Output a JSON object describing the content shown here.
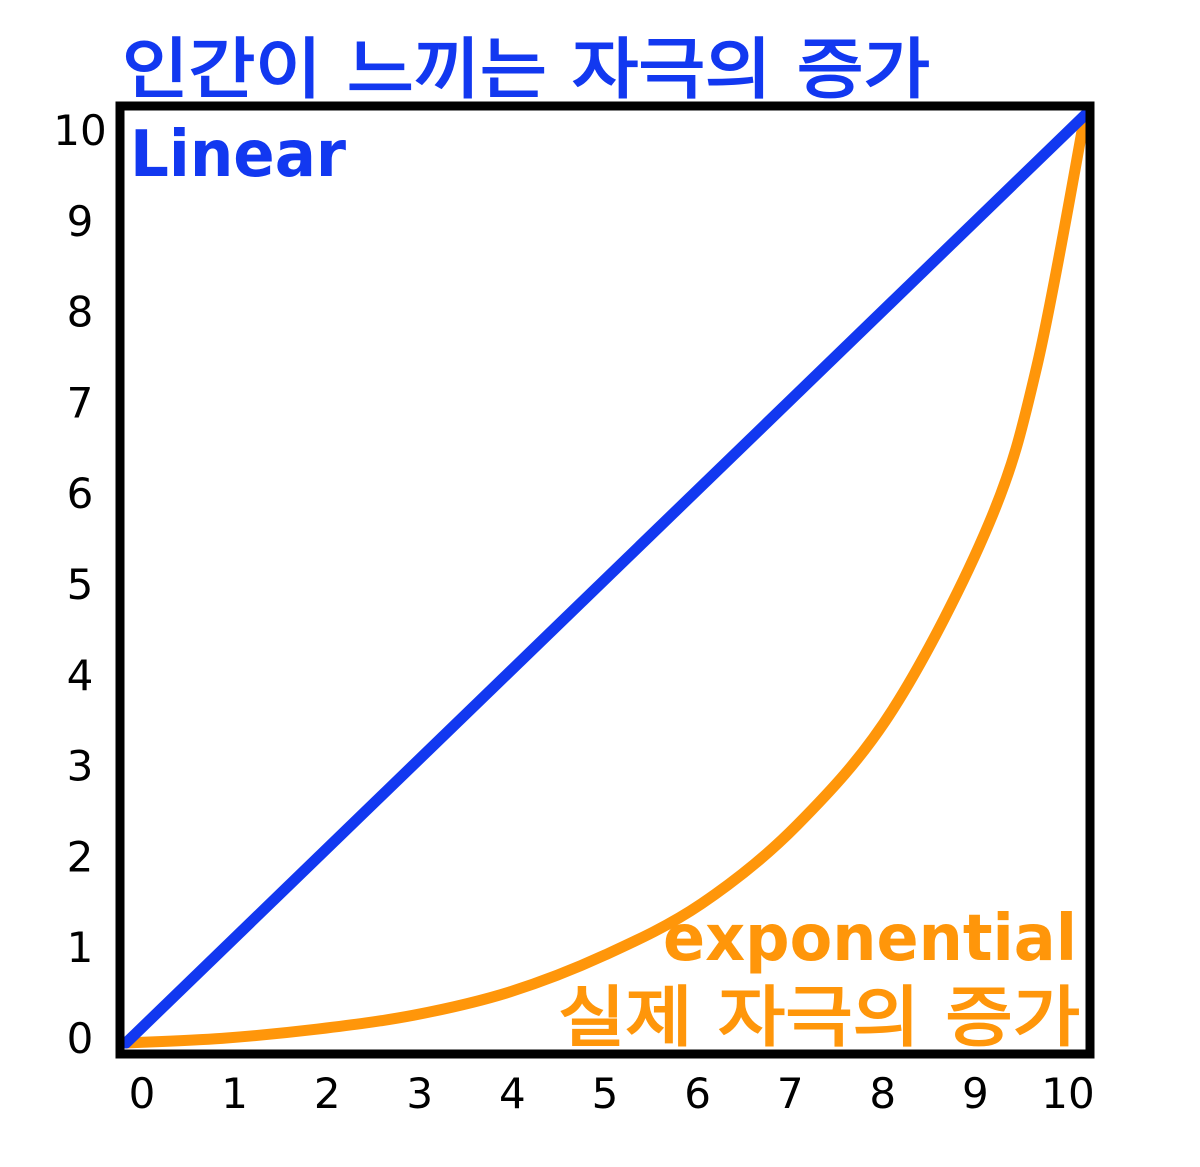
{
  "chart_data": {
    "type": "line",
    "title": "",
    "xlabel": "",
    "ylabel": "",
    "xlim": [
      0,
      10
    ],
    "ylim": [
      0,
      10
    ],
    "x_ticks": [
      "0",
      "1",
      "2",
      "3",
      "4",
      "5",
      "6",
      "7",
      "8",
      "9",
      "10"
    ],
    "y_ticks": [
      "0",
      "1",
      "2",
      "3",
      "4",
      "5",
      "6",
      "7",
      "8",
      "9",
      "10"
    ],
    "grid": false,
    "series": [
      {
        "key": "linear",
        "label_line1": "인간이 느끼는 자극의 증가",
        "label_line2": "Linear",
        "color": "#1238f0",
        "x": [
          0,
          10
        ],
        "y": [
          0,
          10
        ]
      },
      {
        "key": "exponential",
        "label_line1": "exponential",
        "label_line2": "실제 자극의 증가",
        "color": "#ff960a",
        "x": [
          0,
          1,
          2,
          3,
          4,
          5,
          6,
          7,
          8,
          9,
          9.5,
          10
        ],
        "y": [
          0,
          0.05,
          0.15,
          0.3,
          0.55,
          0.95,
          1.5,
          2.35,
          3.6,
          5.6,
          7.3,
          10
        ]
      }
    ]
  }
}
